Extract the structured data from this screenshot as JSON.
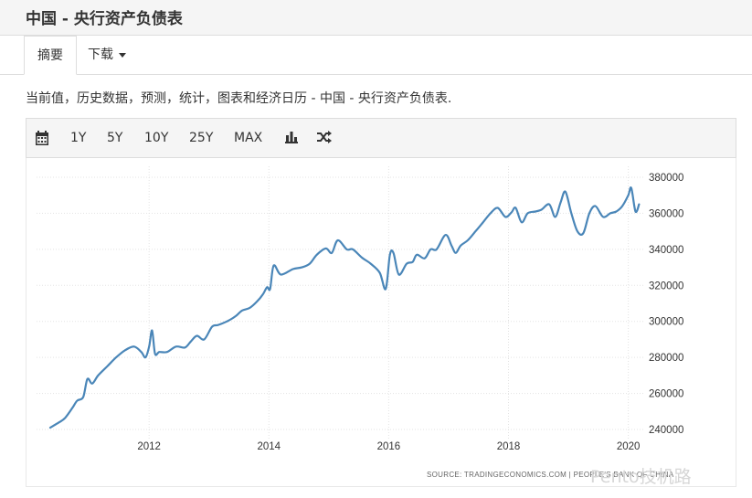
{
  "page": {
    "title": "中国 - 央行资产负债表",
    "description": "当前值，历史数据，预测，统计，图表和经济日历 - 中国 - 央行资产负债表."
  },
  "tabs": [
    {
      "label": "摘要",
      "active": true
    },
    {
      "label": "下载",
      "active": false
    }
  ],
  "toolbar": {
    "icons": [
      "calendar-icon",
      "bar-chart-icon",
      "shuffle-icon"
    ],
    "ranges": [
      "1Y",
      "5Y",
      "10Y",
      "25Y",
      "MAX"
    ]
  },
  "chart_data": {
    "type": "line",
    "title": "",
    "xlabel": "",
    "ylabel": "",
    "x_ticks": [
      "2012",
      "2014",
      "2016",
      "2018",
      "2020"
    ],
    "y_ticks": [
      "240000",
      "260000",
      "280000",
      "300000",
      "320000",
      "340000",
      "360000",
      "380000"
    ],
    "ylim": [
      240000,
      380000
    ],
    "xlim": [
      2010.35,
      2020.25
    ],
    "grid": true,
    "series": [
      {
        "name": "",
        "color": "#4a86b8",
        "x": [
          2010.35,
          2010.5,
          2010.6,
          2010.72,
          2010.8,
          2010.9,
          2010.97,
          2011.05,
          2011.15,
          2011.3,
          2011.45,
          2011.6,
          2011.75,
          2011.87,
          2011.94,
          2012.0,
          2012.05,
          2012.1,
          2012.17,
          2012.3,
          2012.45,
          2012.6,
          2012.7,
          2012.8,
          2012.92,
          2013.05,
          2013.15,
          2013.3,
          2013.45,
          2013.55,
          2013.68,
          2013.8,
          2013.9,
          2013.97,
          2014.02,
          2014.08,
          2014.2,
          2014.4,
          2014.55,
          2014.68,
          2014.8,
          2014.95,
          2015.05,
          2015.15,
          2015.3,
          2015.4,
          2015.55,
          2015.7,
          2015.85,
          2015.95,
          2016.02,
          2016.08,
          2016.17,
          2016.3,
          2016.4,
          2016.47,
          2016.6,
          2016.7,
          2016.8,
          2016.95,
          2017.05,
          2017.12,
          2017.2,
          2017.32,
          2017.45,
          2017.55,
          2017.7,
          2017.82,
          2017.95,
          2018.05,
          2018.12,
          2018.22,
          2018.32,
          2018.45,
          2018.55,
          2018.68,
          2018.78,
          2018.87,
          2018.95,
          2019.05,
          2019.15,
          2019.25,
          2019.35,
          2019.45,
          2019.58,
          2019.7,
          2019.8,
          2019.9,
          2020.0,
          2020.05,
          2020.12,
          2020.18
        ],
        "values": [
          241000,
          244000,
          246500,
          252000,
          256000,
          258000,
          268000,
          265500,
          270000,
          275000,
          280000,
          284000,
          286000,
          283000,
          280000,
          286000,
          295000,
          282000,
          283000,
          283000,
          286000,
          285500,
          289000,
          292000,
          290000,
          297000,
          298000,
          300000,
          303000,
          306000,
          307500,
          311000,
          315000,
          319000,
          318000,
          331000,
          326000,
          329000,
          330000,
          332000,
          337000,
          340500,
          338000,
          345000,
          340000,
          340000,
          335500,
          332000,
          327000,
          318000,
          337000,
          338000,
          326000,
          332000,
          333000,
          337000,
          335000,
          340000,
          340000,
          348000,
          342000,
          338000,
          342000,
          345000,
          350000,
          354000,
          360000,
          363000,
          358000,
          360500,
          363000,
          355000,
          360000,
          361000,
          362000,
          365000,
          358000,
          366000,
          372000,
          360000,
          350000,
          349000,
          360000,
          364000,
          358000,
          360000,
          361000,
          364000,
          370000,
          374000,
          361000,
          365000
        ]
      }
    ],
    "source": "SOURCE: TRADINGECONOMICS.COM  |  PEOPLE'S BANK OF CHINA"
  },
  "watermark": "Pento技机路"
}
